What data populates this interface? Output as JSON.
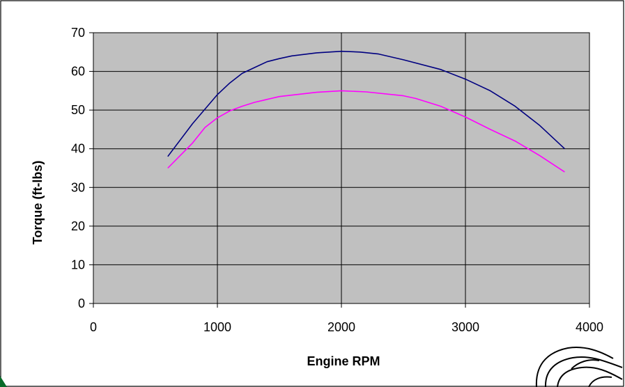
{
  "chart_data": {
    "type": "line",
    "title": "",
    "xlabel": "Engine RPM",
    "ylabel": "Torque (ft-lbs)",
    "xlim": [
      0,
      4000
    ],
    "ylim": [
      0,
      70
    ],
    "xticks": [
      "0",
      "1000",
      "2000",
      "3000",
      "4000"
    ],
    "yticks": [
      "0",
      "10",
      "20",
      "30",
      "40",
      "50",
      "60",
      "70"
    ],
    "grid": true,
    "plot_background": "#c0c0c0",
    "series": [
      {
        "color": "#000080",
        "x": [
          600,
          800,
          1000,
          1100,
          1200,
          1300,
          1400,
          1500,
          1600,
          1800,
          2000,
          2150,
          2300,
          2500,
          2800,
          3000,
          3200,
          3400,
          3600,
          3800
        ],
        "y": [
          38,
          46.5,
          54,
          57,
          59.5,
          61,
          62.5,
          63.3,
          64,
          64.8,
          65.2,
          65,
          64.5,
          63,
          60.5,
          58,
          55,
          51,
          46,
          40
        ]
      },
      {
        "color": "#ff00ff",
        "x": [
          600,
          800,
          900,
          1000,
          1100,
          1200,
          1300,
          1500,
          1800,
          2000,
          2200,
          2500,
          2600,
          2800,
          3000,
          3200,
          3400,
          3600,
          3800
        ],
        "y": [
          35,
          41.5,
          45.5,
          48,
          49.8,
          51,
          52,
          53.5,
          54.6,
          55,
          54.7,
          53.7,
          53,
          51,
          48.2,
          45,
          42,
          38.2,
          34
        ]
      }
    ]
  }
}
